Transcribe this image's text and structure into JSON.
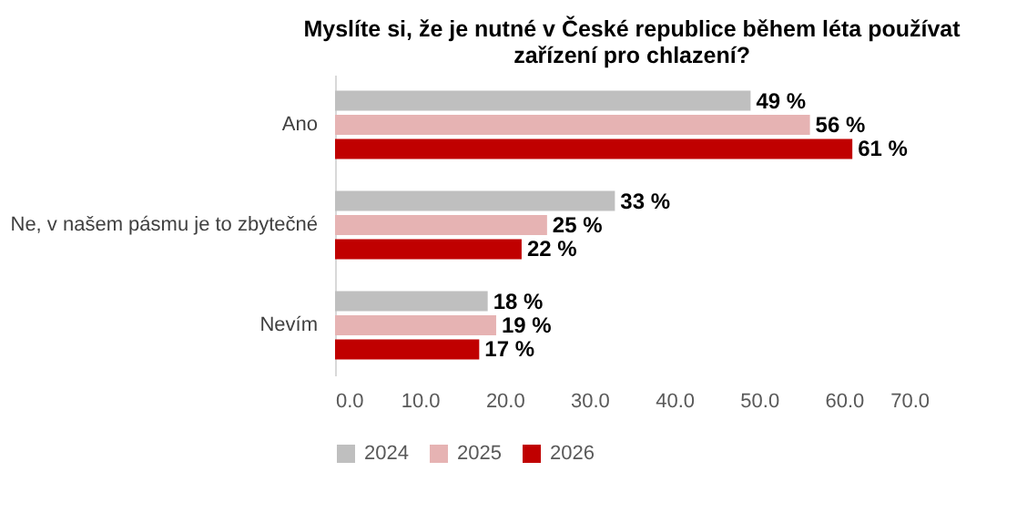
{
  "chart_data": {
    "type": "bar",
    "orientation": "horizontal",
    "title": "Myslíte si, že je nutné v České republice během léta používat zařízení pro chlazení?",
    "categories": [
      "Ano",
      "Ne, v našem pásmu je to zbytečné",
      "Nevím"
    ],
    "series": [
      {
        "name": "2024",
        "color": "#bfbfbf",
        "values": [
          49,
          33,
          18
        ],
        "value_labels": [
          "49 %",
          "33 %",
          "18 %"
        ]
      },
      {
        "name": "2025",
        "color": "#e6b3b3",
        "values": [
          56,
          25,
          19
        ],
        "value_labels": [
          "56 %",
          "25 %",
          "19 %"
        ]
      },
      {
        "name": "2026",
        "color": "#c00000",
        "values": [
          61,
          22,
          17
        ],
        "value_labels": [
          "61 %",
          "22 %",
          "17 %"
        ]
      }
    ],
    "xlim": [
      0,
      70
    ],
    "xticks": [
      {
        "value": 0,
        "label": "0.0"
      },
      {
        "value": 10,
        "label": "10.0"
      },
      {
        "value": 20,
        "label": "20.0"
      },
      {
        "value": 30,
        "label": "30.0"
      },
      {
        "value": 40,
        "label": "40.0"
      },
      {
        "value": 50,
        "label": "50.0"
      },
      {
        "value": 60,
        "label": "60.0"
      },
      {
        "value": 70,
        "label": "70.0"
      }
    ],
    "legend": "bottom",
    "grid": false
  }
}
